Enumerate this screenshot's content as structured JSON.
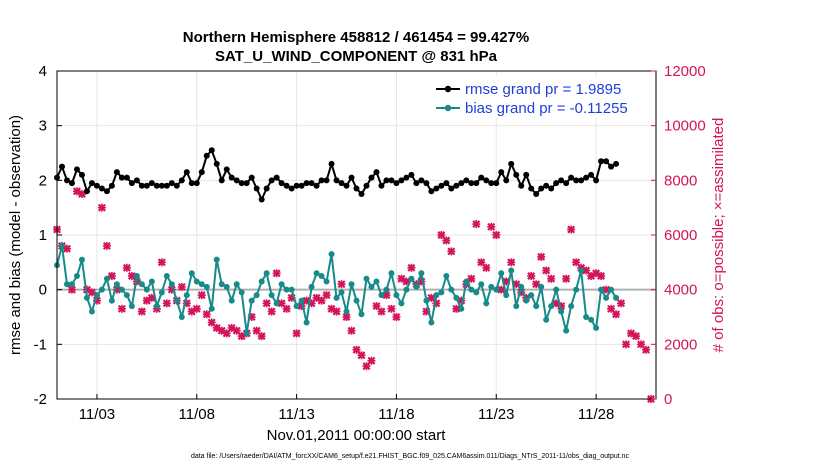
{
  "chart_data": {
    "type": "line",
    "title_line1": "Northern Hemisphere 458812 / 461454 = 99.427%",
    "title_line2": "SAT_U_WIND_COMPONENT @ 831 hPa",
    "xlabel": "Nov.01,2011 00:00:00 start",
    "ylabel_left": "rmse and bias (model - observation)",
    "ylabel_right": "# of obs: o=possible; ×=assimilated",
    "xlim": [
      1,
      31
    ],
    "ylim_left": [
      -2,
      4
    ],
    "ylim_right": [
      0,
      12000
    ],
    "x_tick_values": [
      3,
      8,
      13,
      18,
      23,
      28
    ],
    "x_ticks": [
      "11/03",
      "11/08",
      "11/13",
      "11/18",
      "11/23",
      "11/28"
    ],
    "y_ticks_left": [
      "-2",
      "-1",
      "0",
      "1",
      "2",
      "3",
      "4"
    ],
    "y_ticks_right": [
      "0",
      "2000",
      "4000",
      "6000",
      "8000",
      "10000",
      "12000"
    ],
    "grid": true,
    "legend_position": "top-right",
    "colors": {
      "rmse": "#000000",
      "bias": "#178a8a",
      "obs": "#d4145a",
      "zero": "#b0b0b0"
    },
    "footnote": "data file: /Users/raeder/DAI/ATM_forcXX/CAM6_setup/f.e21.FHIST_BGC.f09_025.CAM6assim.011/Diags_NTrS_2011-11/obs_diag_output.nc",
    "series": [
      {
        "name": "rmse grand pr = 1.9895",
        "axis": "left",
        "color": "#000000",
        "marker": "circle",
        "x_start": 1.0,
        "x_step": 0.25,
        "values": [
          2.05,
          2.25,
          2.0,
          1.95,
          2.2,
          2.1,
          1.8,
          1.95,
          1.9,
          1.85,
          1.8,
          1.9,
          2.15,
          2.05,
          2.05,
          1.95,
          2.0,
          1.9,
          1.9,
          1.95,
          1.9,
          1.9,
          1.9,
          1.95,
          1.9,
          2.0,
          2.15,
          1.95,
          1.95,
          2.15,
          2.45,
          2.55,
          2.3,
          2.0,
          2.2,
          2.05,
          2.0,
          1.95,
          1.95,
          2.05,
          1.85,
          1.65,
          1.85,
          2.0,
          2.05,
          1.95,
          1.9,
          1.85,
          1.9,
          1.9,
          1.95,
          1.95,
          1.9,
          2.0,
          2.0,
          2.3,
          2.0,
          1.95,
          1.9,
          2.05,
          1.85,
          1.75,
          1.9,
          2.05,
          2.15,
          1.9,
          2.0,
          2.0,
          1.95,
          2.0,
          2.05,
          2.1,
          1.95,
          2.0,
          1.95,
          1.8,
          1.85,
          1.9,
          1.95,
          1.85,
          1.9,
          1.95,
          2.0,
          1.95,
          1.95,
          2.05,
          2.0,
          1.95,
          1.95,
          2.15,
          2.0,
          2.3,
          2.1,
          1.9,
          2.1,
          1.85,
          1.75,
          1.85,
          1.9,
          1.85,
          1.95,
          2.0,
          1.95,
          2.05,
          2.0,
          2.0,
          2.05,
          2.1,
          2.0,
          2.35,
          2.35,
          2.25,
          2.3
        ]
      },
      {
        "name": "bias grand pr = -0.11255",
        "axis": "left",
        "color": "#178a8a",
        "marker": "circle",
        "x_start": 1.0,
        "x_step": 0.25,
        "values": [
          0.45,
          0.8,
          0.1,
          0.1,
          0.25,
          0.55,
          -0.15,
          -0.4,
          -0.1,
          0.0,
          0.2,
          -0.2,
          0.1,
          0.0,
          -0.1,
          -0.3,
          0.25,
          0.1,
          0.0,
          0.15,
          -0.3,
          -0.05,
          0.25,
          0.1,
          -0.2,
          -0.5,
          -0.1,
          0.3,
          0.15,
          0.1,
          0.05,
          -0.35,
          0.55,
          0.1,
          0.05,
          -0.2,
          0.1,
          -0.05,
          -0.8,
          -0.2,
          -0.1,
          0.15,
          0.3,
          -0.1,
          -0.25,
          0.1,
          0.0,
          0.0,
          -0.3,
          -0.2,
          -0.6,
          0.05,
          0.3,
          0.25,
          0.15,
          0.65,
          -0.15,
          -0.05,
          -0.4,
          0.1,
          -0.2,
          -0.45,
          0.2,
          0.05,
          0.15,
          -0.1,
          0.0,
          0.3,
          -0.1,
          -0.25,
          0.0,
          0.2,
          0.05,
          0.3,
          -0.2,
          -0.6,
          -0.1,
          -0.05,
          0.25,
          0.0,
          -0.15,
          -0.35,
          0.15,
          0.0,
          -0.05,
          0.1,
          -0.25,
          0.05,
          0.0,
          0.3,
          -0.1,
          0.35,
          -0.3,
          0.05,
          -0.2,
          -0.1,
          -0.3,
          0.05,
          -0.55,
          -0.3,
          0.0,
          -0.4,
          -0.75,
          -0.3,
          0.0,
          0.35,
          -0.5,
          -0.55,
          -0.7,
          0.0,
          -0.15,
          0.0,
          -0.15
        ]
      },
      {
        "name": "# obs assimilated",
        "axis": "right",
        "color": "#d4145a",
        "marker": "cross",
        "x_start": 1.0,
        "x_step": 0.25,
        "values": [
          6200,
          5600,
          5500,
          4000,
          7600,
          7500,
          4000,
          3900,
          3600,
          7000,
          5600,
          4500,
          4000,
          3300,
          4800,
          4500,
          4300,
          3200,
          3600,
          3700,
          3300,
          5000,
          3500,
          4000,
          3600,
          4100,
          3500,
          3200,
          3300,
          3800,
          3100,
          2800,
          2600,
          2500,
          2400,
          2600,
          2500,
          2300,
          2400,
          3000,
          2500,
          2300,
          3500,
          3200,
          4600,
          3500,
          3300,
          3700,
          2400,
          3400,
          3600,
          3500,
          3700,
          3600,
          3800,
          3300,
          3200,
          4200,
          3000,
          2500,
          1800,
          1600,
          1200,
          1400,
          3400,
          3200,
          3800,
          3300,
          3000,
          4400,
          4300,
          4800,
          4200,
          4300,
          3200,
          3700,
          3500,
          6000,
          5800,
          5400,
          3300,
          3600,
          4200,
          4400,
          6400,
          5000,
          4800,
          6300,
          6000,
          4000,
          4300,
          5000,
          4200,
          3900,
          3700,
          4500,
          4200,
          5200,
          4700,
          4400,
          3500,
          3400,
          4400,
          6200,
          5000,
          4800,
          4700,
          4500,
          4600,
          4500,
          4000,
          3300,
          3100,
          3500,
          2000,
          2400,
          2300,
          2000,
          1800,
          0
        ]
      }
    ]
  }
}
